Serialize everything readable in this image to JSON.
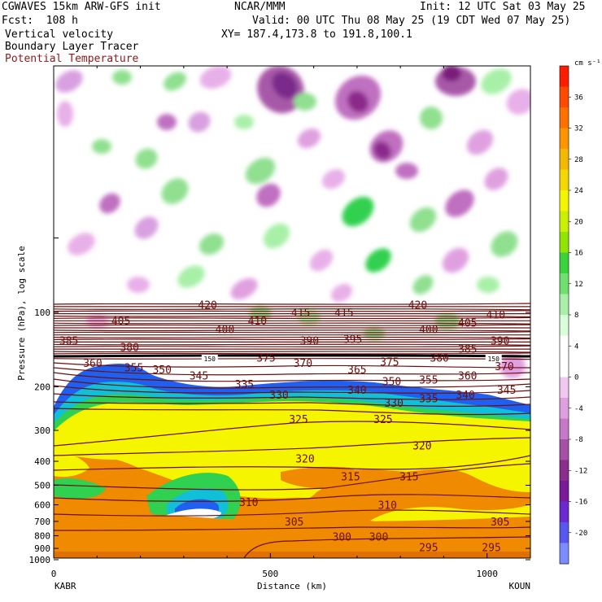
{
  "header": {
    "line1_left": "CGWAVES 15km ARW-GFS init",
    "line1_center": "NCAR/MMM",
    "line1_right": "Init: 12 UTC Sat 03 May 25",
    "line2_left": "Fcst:  108 h",
    "line2_right": "Valid: 00 UTC Thu 08 May 25 (19 CDT Wed 07 May 25)",
    "line3_left": "Vertical velocity",
    "line3_right": "XY= 187.4,173.8 to 191.8,100.1",
    "line4_left": "Boundary Layer Tracer",
    "line5_left": "Potential Temperature"
  },
  "colors": {
    "theta_contour": "#6b0f0f",
    "tracer_yellow": "#f5f500",
    "tracer_orange": "#f08a00",
    "tracer_green": "#3cd23c",
    "tracer_blue": "#2070ff"
  },
  "chart_data": {
    "type": "heatmap",
    "xlabel": "Distance (km)",
    "ylabel": "Pressure (hPa), log scale",
    "x_ticks": [
      0,
      500,
      1000
    ],
    "xlim": [
      0,
      1100
    ],
    "y_ticks": [
      100,
      200,
      300,
      400,
      500,
      600,
      700,
      800,
      900,
      1000
    ],
    "y_scale": "log",
    "ylim": [
      1000,
      10
    ],
    "left_endpoint": "KABR",
    "right_endpoint": "KOUN",
    "colorbar": {
      "unit": "cm s⁻¹",
      "ticks": [
        36,
        32,
        28,
        24,
        20,
        16,
        12,
        8,
        4,
        0,
        -4,
        -8,
        -12,
        -16,
        -20
      ],
      "colors": [
        "#ff1c00",
        "#ff4a00",
        "#ff7000",
        "#ff9600",
        "#f5b800",
        "#f5d800",
        "#f5f500",
        "#c8f000",
        "#90e600",
        "#3cd23c",
        "#70e070",
        "#a8f0a8",
        "#d8ffd8",
        "#ffffff",
        "#ffffff",
        "#f0c8f0",
        "#e0a0e0",
        "#c878c8",
        "#a850a8",
        "#8c2c8c",
        "#7a1a9a",
        "#6a2ad0",
        "#5858f0",
        "#7a8cff"
      ]
    },
    "theta_labels": [
      {
        "value": 420,
        "x": 355,
        "p": 93
      },
      {
        "value": 415,
        "x": 570,
        "p": 100
      },
      {
        "value": 420,
        "x": 840,
        "p": 93
      },
      {
        "value": 410,
        "x": 1020,
        "p": 102
      },
      {
        "value": 405,
        "x": 155,
        "p": 108
      },
      {
        "value": 410,
        "x": 470,
        "p": 108
      },
      {
        "value": 415,
        "x": 670,
        "p": 100
      },
      {
        "value": 400,
        "x": 395,
        "p": 117
      },
      {
        "value": 405,
        "x": 955,
        "p": 110
      },
      {
        "value": 400,
        "x": 865,
        "p": 117
      },
      {
        "value": 395,
        "x": 690,
        "p": 128
      },
      {
        "value": 390,
        "x": 590,
        "p": 130
      },
      {
        "value": 390,
        "x": 1030,
        "p": 130
      },
      {
        "value": 385,
        "x": 35,
        "p": 130
      },
      {
        "value": 380,
        "x": 175,
        "p": 138
      },
      {
        "value": 385,
        "x": 955,
        "p": 140
      },
      {
        "value": 380,
        "x": 890,
        "p": 152
      },
      {
        "value": 375,
        "x": 490,
        "p": 152
      },
      {
        "value": 375,
        "x": 775,
        "p": 158
      },
      {
        "value": 370,
        "x": 575,
        "p": 160
      },
      {
        "value": 370,
        "x": 1040,
        "p": 165
      },
      {
        "value": 365,
        "x": 700,
        "p": 170
      },
      {
        "value": 360,
        "x": 90,
        "p": 160
      },
      {
        "value": 355,
        "x": 185,
        "p": 167
      },
      {
        "value": 360,
        "x": 955,
        "p": 180
      },
      {
        "value": 350,
        "x": 250,
        "p": 170
      },
      {
        "value": 345,
        "x": 335,
        "p": 180
      },
      {
        "value": 355,
        "x": 865,
        "p": 187
      },
      {
        "value": 350,
        "x": 780,
        "p": 190
      },
      {
        "value": 340,
        "x": 700,
        "p": 205
      },
      {
        "value": 345,
        "x": 1045,
        "p": 205
      },
      {
        "value": 335,
        "x": 440,
        "p": 195
      },
      {
        "value": 340,
        "x": 950,
        "p": 215
      },
      {
        "value": 330,
        "x": 520,
        "p": 215
      },
      {
        "value": 330,
        "x": 785,
        "p": 232
      },
      {
        "value": 335,
        "x": 865,
        "p": 222
      },
      {
        "value": 325,
        "x": 565,
        "p": 270
      },
      {
        "value": 325,
        "x": 760,
        "p": 270
      },
      {
        "value": 320,
        "x": 850,
        "p": 345
      },
      {
        "value": 320,
        "x": 580,
        "p": 390
      },
      {
        "value": 315,
        "x": 685,
        "p": 460
      },
      {
        "value": 315,
        "x": 820,
        "p": 460
      },
      {
        "value": 310,
        "x": 450,
        "p": 585
      },
      {
        "value": 310,
        "x": 770,
        "p": 600
      },
      {
        "value": 305,
        "x": 555,
        "p": 700
      },
      {
        "value": 305,
        "x": 1030,
        "p": 700
      },
      {
        "value": 300,
        "x": 665,
        "p": 805
      },
      {
        "value": 300,
        "x": 750,
        "p": 805
      },
      {
        "value": 295,
        "x": 865,
        "p": 890
      },
      {
        "value": 295,
        "x": 1010,
        "p": 890
      }
    ],
    "tropopause_labels": [
      {
        "value": 150,
        "x": 360,
        "p": 154
      },
      {
        "value": 150,
        "x": 1015,
        "p": 154
      }
    ],
    "grid": false
  }
}
